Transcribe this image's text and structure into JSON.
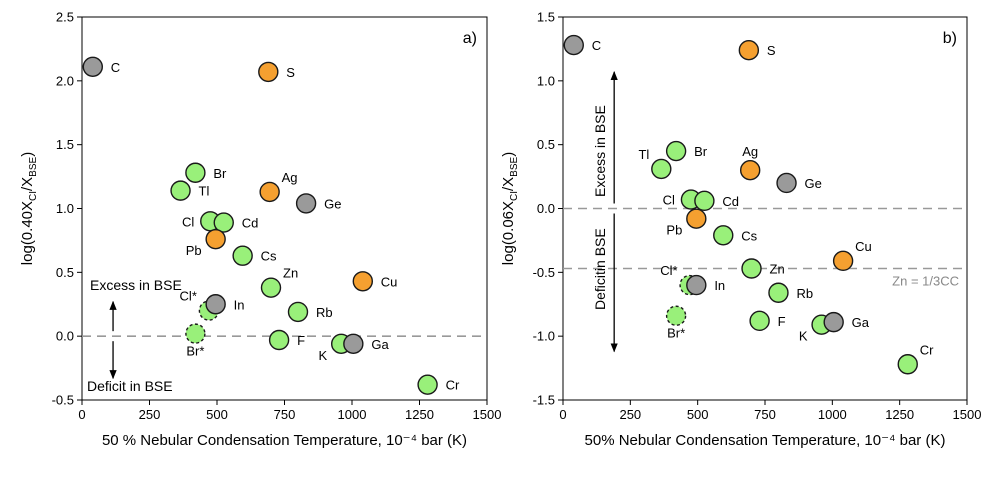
{
  "colors": {
    "green": "#99F07A",
    "orange": "#F5A030",
    "gray": "#9A9A9A",
    "edge": "#1a1a1a",
    "ref_line": "#999999",
    "axis": "#000000"
  },
  "chart_data": [
    {
      "type": "scatter",
      "panel_label": "a)",
      "xlabel": "50 % Nebular Condensation Temperature, 10⁻⁴ bar (K)",
      "ylabel": "log(0.40XCI/XBSE)",
      "xlim": [
        0,
        1500
      ],
      "ylim": [
        -0.5,
        2.5
      ],
      "xticks": [
        "0",
        "250",
        "500",
        "750",
        "1000",
        "1250",
        "1500"
      ],
      "yticks": [
        "-0.5",
        "0.0",
        "0.5",
        "1.0",
        "1.5",
        "2.0",
        "2.5"
      ],
      "reference_lines": [
        {
          "y": 0.0,
          "label": ""
        }
      ],
      "annotations": {
        "excess": "Excess in BSE",
        "deficit": "Deficit in BSE"
      },
      "points": [
        {
          "label": "C",
          "x": 40,
          "y": 2.11,
          "group": "gray",
          "lpos": "right"
        },
        {
          "label": "S",
          "x": 690,
          "y": 2.07,
          "group": "orange",
          "lpos": "right"
        },
        {
          "label": "Br",
          "x": 420,
          "y": 1.28,
          "group": "green",
          "lpos": "right"
        },
        {
          "label": "Tl",
          "x": 365,
          "y": 1.14,
          "group": "green",
          "lpos": "right"
        },
        {
          "label": "Ag",
          "x": 695,
          "y": 1.13,
          "group": "orange",
          "lpos": "upright"
        },
        {
          "label": "Ge",
          "x": 830,
          "y": 1.04,
          "group": "gray",
          "lpos": "right"
        },
        {
          "label": "Cl",
          "x": 475,
          "y": 0.9,
          "group": "green",
          "lpos": "left"
        },
        {
          "label": "Cd",
          "x": 525,
          "y": 0.89,
          "group": "green",
          "lpos": "right"
        },
        {
          "label": "Pb",
          "x": 495,
          "y": 0.76,
          "group": "orange",
          "lpos": "downleft"
        },
        {
          "label": "Cs",
          "x": 595,
          "y": 0.63,
          "group": "green",
          "lpos": "right"
        },
        {
          "label": "Cu",
          "x": 1040,
          "y": 0.43,
          "group": "orange",
          "lpos": "right"
        },
        {
          "label": "Zn",
          "x": 700,
          "y": 0.38,
          "group": "green",
          "lpos": "upright"
        },
        {
          "label": "Cl*",
          "x": 470,
          "y": 0.2,
          "group": "green",
          "lpos": "upleft",
          "dashed": true
        },
        {
          "label": "In",
          "x": 495,
          "y": 0.25,
          "group": "gray",
          "lpos": "right"
        },
        {
          "label": "Rb",
          "x": 800,
          "y": 0.19,
          "group": "green",
          "lpos": "right"
        },
        {
          "label": "Br*",
          "x": 420,
          "y": 0.02,
          "group": "green",
          "lpos": "below",
          "dashed": true
        },
        {
          "label": "F",
          "x": 730,
          "y": -0.03,
          "group": "green",
          "lpos": "right"
        },
        {
          "label": "K",
          "x": 960,
          "y": -0.06,
          "group": "green",
          "lpos": "downleft"
        },
        {
          "label": "Ga",
          "x": 1005,
          "y": -0.06,
          "group": "gray",
          "lpos": "right"
        },
        {
          "label": "Cr",
          "x": 1280,
          "y": -0.38,
          "group": "green",
          "lpos": "right"
        }
      ]
    },
    {
      "type": "scatter",
      "panel_label": "b)",
      "xlabel": "50% Nebular Condensation Temperature, 10⁻⁴ bar (K)",
      "ylabel": "log(0.06XCI/XBSE)",
      "xlim": [
        0,
        1500
      ],
      "ylim": [
        -1.5,
        1.5
      ],
      "xticks": [
        "0",
        "250",
        "500",
        "750",
        "1000",
        "1250",
        "1500"
      ],
      "yticks": [
        "-1.5",
        "-1.0",
        "-0.5",
        "0.0",
        "0.5",
        "1.0",
        "1.5"
      ],
      "reference_lines": [
        {
          "y": 0.0,
          "label": ""
        },
        {
          "y": -0.47,
          "label": "Zn = 1/3CC"
        }
      ],
      "annotations": {
        "excess": "Excess in BSE",
        "deficit": "Deficitin BSE"
      },
      "points": [
        {
          "label": "C",
          "x": 40,
          "y": 1.28,
          "group": "gray",
          "lpos": "right"
        },
        {
          "label": "S",
          "x": 690,
          "y": 1.24,
          "group": "orange",
          "lpos": "right"
        },
        {
          "label": "Br",
          "x": 420,
          "y": 0.45,
          "group": "green",
          "lpos": "right"
        },
        {
          "label": "Tl",
          "x": 365,
          "y": 0.31,
          "group": "green",
          "lpos": "upleft"
        },
        {
          "label": "Ag",
          "x": 695,
          "y": 0.3,
          "group": "orange",
          "lpos": "up"
        },
        {
          "label": "Ge",
          "x": 830,
          "y": 0.2,
          "group": "gray",
          "lpos": "right"
        },
        {
          "label": "Cl",
          "x": 475,
          "y": 0.07,
          "group": "green",
          "lpos": "left"
        },
        {
          "label": "Cd",
          "x": 525,
          "y": 0.06,
          "group": "green",
          "lpos": "right"
        },
        {
          "label": "Pb",
          "x": 495,
          "y": -0.08,
          "group": "orange",
          "lpos": "downleft"
        },
        {
          "label": "Cs",
          "x": 595,
          "y": -0.21,
          "group": "green",
          "lpos": "right"
        },
        {
          "label": "Cu",
          "x": 1040,
          "y": -0.41,
          "group": "orange",
          "lpos": "upright"
        },
        {
          "label": "Zn",
          "x": 700,
          "y": -0.47,
          "group": "green",
          "lpos": "right"
        },
        {
          "label": "Cl*",
          "x": 470,
          "y": -0.6,
          "group": "green",
          "lpos": "upleft",
          "dashed": true
        },
        {
          "label": "In",
          "x": 495,
          "y": -0.6,
          "group": "gray",
          "lpos": "right"
        },
        {
          "label": "Rb",
          "x": 800,
          "y": -0.66,
          "group": "green",
          "lpos": "right"
        },
        {
          "label": "Br*",
          "x": 420,
          "y": -0.84,
          "group": "green",
          "lpos": "below",
          "dashed": true
        },
        {
          "label": "F",
          "x": 730,
          "y": -0.88,
          "group": "green",
          "lpos": "right"
        },
        {
          "label": "K",
          "x": 960,
          "y": -0.91,
          "group": "green",
          "lpos": "downleft"
        },
        {
          "label": "Ga",
          "x": 1005,
          "y": -0.89,
          "group": "gray",
          "lpos": "right"
        },
        {
          "label": "Cr",
          "x": 1280,
          "y": -1.22,
          "group": "green",
          "lpos": "upright"
        }
      ]
    }
  ]
}
